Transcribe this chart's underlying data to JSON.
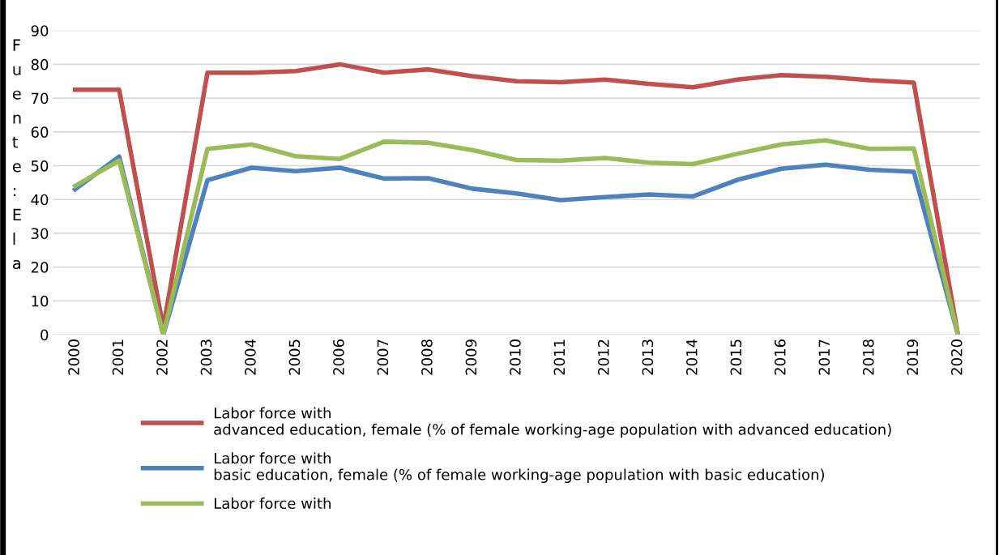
{
  "chart_data": {
    "type": "line",
    "ylabel": "Fuente: Ela",
    "categories": [
      "2000",
      "2001",
      "2002",
      "2003",
      "2004",
      "2005",
      "2006",
      "2007",
      "2008",
      "2009",
      "2010",
      "2011",
      "2012",
      "2013",
      "2014",
      "2015",
      "2016",
      "2017",
      "2018",
      "2019",
      "2020"
    ],
    "series": [
      {
        "name": "Labor force with\nadvanced education, female (% of female working-age population with advanced education)",
        "color": "#c0504d",
        "values": [
          72.5,
          72.5,
          2,
          77.5,
          77.5,
          78,
          80,
          77.5,
          78.5,
          76.5,
          75,
          74.7,
          75.5,
          74.2,
          73.2,
          75.5,
          76.8,
          76.3,
          75.3,
          74.6,
          0
        ]
      },
      {
        "name": "Labor force with\nbasic education, female (% of female working-age population with basic education)",
        "color": "#4f81bd",
        "values": [
          43,
          52.7,
          0,
          45.7,
          49.4,
          48.4,
          49.4,
          46.2,
          46.3,
          43.2,
          41.8,
          39.8,
          40.7,
          41.5,
          40.9,
          45.8,
          49.1,
          50.3,
          48.8,
          48.2,
          0
        ]
      },
      {
        "name": "Labor force with",
        "color": "#9bbb59",
        "values": [
          44,
          51.5,
          0,
          55,
          56.3,
          52.8,
          52,
          57.1,
          56.8,
          54.6,
          51.7,
          51.5,
          52.3,
          50.9,
          50.5,
          53.5,
          56.3,
          57.5,
          55,
          55.1,
          0
        ]
      }
    ],
    "ylim": [
      0,
      90
    ],
    "yticks": [
      0,
      10,
      20,
      30,
      40,
      50,
      60,
      70,
      80,
      90
    ],
    "grid": "y",
    "legend": "bottom",
    "marker": "none",
    "line_style": "solid"
  }
}
